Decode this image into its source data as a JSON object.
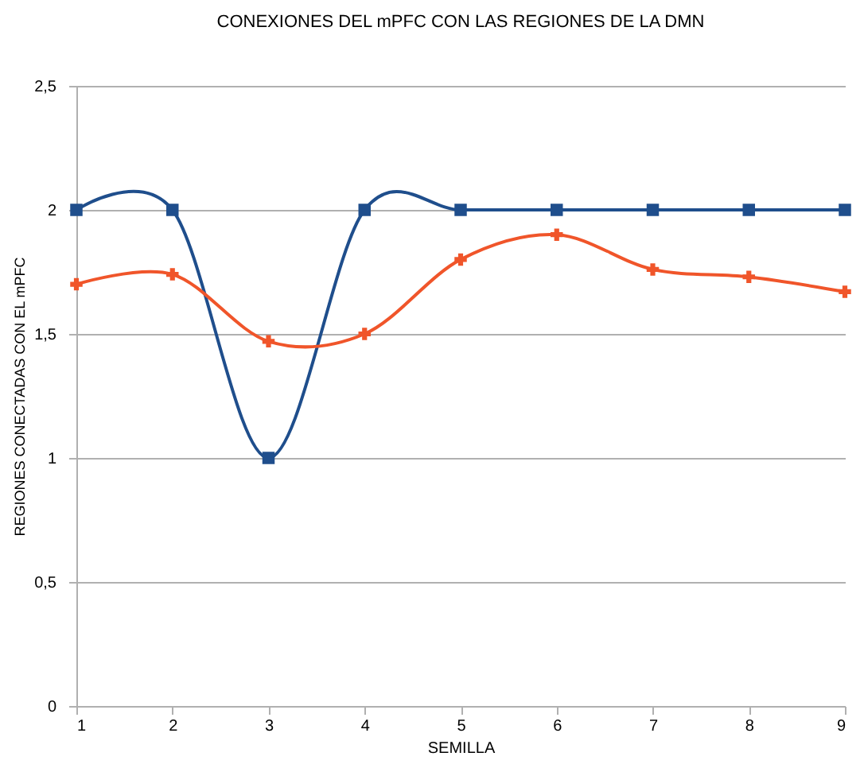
{
  "chart_data": {
    "type": "line",
    "title": "CONEXIONES DEL mPFC CON LAS REGIONES DE LA DMN",
    "xlabel": "SEMILLA",
    "ylabel": "REGIONES CONECTADAS CON EL mPFC",
    "x": [
      1,
      2,
      3,
      4,
      5,
      6,
      7,
      8,
      9
    ],
    "series": [
      {
        "color": "#1f4e8c",
        "marker": "square",
        "values": [
          2,
          2,
          1,
          2,
          2,
          2,
          2,
          2,
          2
        ]
      },
      {
        "color": "#f0552a",
        "marker": "cross",
        "values": [
          1.7,
          1.74,
          1.47,
          1.5,
          1.8,
          1.9,
          1.76,
          1.73,
          1.67
        ]
      }
    ],
    "xlim": [
      1,
      9
    ],
    "xticks": [
      1,
      2,
      3,
      4,
      5,
      6,
      7,
      8,
      9
    ],
    "ylim": [
      0,
      2.5
    ],
    "yticks": [
      0,
      {
        "value": 0.5,
        "label": "0,5"
      },
      1,
      {
        "value": 1.5,
        "label": "1,5"
      },
      2,
      {
        "value": 2.5,
        "label": "2,5"
      }
    ],
    "grid": "y"
  }
}
